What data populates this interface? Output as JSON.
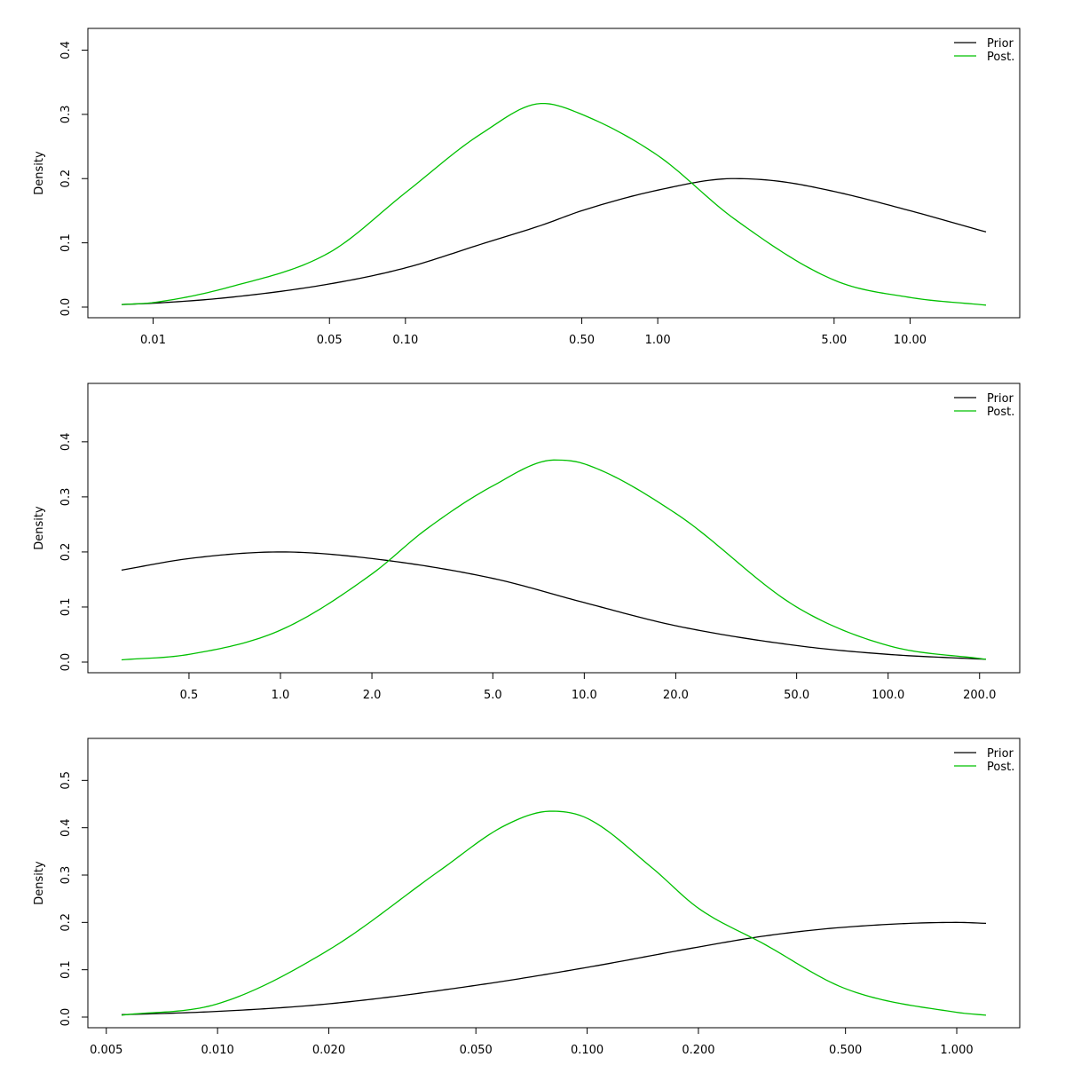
{
  "colors": {
    "prior": "#000000",
    "post": "#00c000"
  },
  "chart_data": [
    {
      "type": "line",
      "x_scale": "log",
      "xlim": [
        0.0075,
        20
      ],
      "ylim": [
        0,
        0.42
      ],
      "ylabel": "Density",
      "xticks": [
        0.01,
        0.05,
        0.1,
        0.5,
        1.0,
        5.0,
        10.0
      ],
      "xtick_labels": [
        "0.01",
        "0.05",
        "0.10",
        "0.50",
        "1.00",
        "5.00",
        "10.00"
      ],
      "yticks": [
        0.0,
        0.1,
        0.2,
        0.3,
        0.4
      ],
      "ytick_labels": [
        "0.0",
        "0.1",
        "0.2",
        "0.3",
        "0.4"
      ],
      "legend": {
        "position": "top-right",
        "entries": [
          "Prior",
          "Post."
        ]
      },
      "series": [
        {
          "name": "Prior",
          "color": "#000000",
          "x": [
            0.0075,
            0.01,
            0.02,
            0.05,
            0.1,
            0.2,
            0.35,
            0.5,
            1.0,
            2.0,
            3.0,
            5.0,
            10.0,
            20.0
          ],
          "y": [
            0.004,
            0.006,
            0.015,
            0.036,
            0.061,
            0.098,
            0.128,
            0.15,
            0.182,
            0.2,
            0.196,
            0.18,
            0.15,
            0.117
          ]
        },
        {
          "name": "Post.",
          "color": "#00c000",
          "x": [
            0.0075,
            0.01,
            0.02,
            0.05,
            0.1,
            0.2,
            0.35,
            0.5,
            1.0,
            2.0,
            5.0,
            10.0,
            20.0
          ],
          "y": [
            0.004,
            0.007,
            0.031,
            0.085,
            0.178,
            0.27,
            0.317,
            0.3,
            0.236,
            0.138,
            0.042,
            0.015,
            0.003
          ]
        }
      ]
    },
    {
      "type": "line",
      "x_scale": "log",
      "xlim": [
        0.3,
        210
      ],
      "ylim": [
        0,
        0.49
      ],
      "ylabel": "Density",
      "xticks": [
        0.5,
        1.0,
        2.0,
        5.0,
        10.0,
        20.0,
        50.0,
        100.0,
        200.0
      ],
      "xtick_labels": [
        "0.5",
        "1.0",
        "2.0",
        "5.0",
        "10.0",
        "20.0",
        "50.0",
        "100.0",
        "200.0"
      ],
      "yticks": [
        0.0,
        0.1,
        0.2,
        0.3,
        0.4
      ],
      "ytick_labels": [
        "0.0",
        "0.1",
        "0.2",
        "0.3",
        "0.4"
      ],
      "legend": {
        "position": "top-right",
        "entries": [
          "Prior",
          "Post."
        ]
      },
      "series": [
        {
          "name": "Prior",
          "color": "#000000",
          "x": [
            0.3,
            0.5,
            1.0,
            2.0,
            5.0,
            10.0,
            20.0,
            50.0,
            100.0,
            210.0
          ],
          "y": [
            0.167,
            0.188,
            0.2,
            0.188,
            0.152,
            0.108,
            0.066,
            0.03,
            0.014,
            0.005
          ]
        },
        {
          "name": "Post.",
          "color": "#00c000",
          "x": [
            0.3,
            0.5,
            1.0,
            2.0,
            3.0,
            5.0,
            8.0,
            10.0,
            20.0,
            50.0,
            100.0,
            210.0
          ],
          "y": [
            0.004,
            0.014,
            0.058,
            0.16,
            0.24,
            0.32,
            0.367,
            0.36,
            0.27,
            0.1,
            0.03,
            0.005
          ]
        }
      ]
    },
    {
      "type": "line",
      "x_scale": "log",
      "xlim": [
        0.0055,
        1.2
      ],
      "ylim": [
        0,
        0.57
      ],
      "ylabel": "Density",
      "xticks": [
        0.005,
        0.01,
        0.02,
        0.05,
        0.1,
        0.2,
        0.5,
        1.0
      ],
      "xtick_labels": [
        "0.005",
        "0.010",
        "0.020",
        "0.050",
        "0.100",
        "0.200",
        "0.500",
        "1.000"
      ],
      "yticks": [
        0.0,
        0.1,
        0.2,
        0.3,
        0.4,
        0.5
      ],
      "ytick_labels": [
        "0.0",
        "0.1",
        "0.2",
        "0.3",
        "0.4",
        "0.5"
      ],
      "legend": {
        "position": "top-right",
        "entries": [
          "Prior",
          "Post."
        ]
      },
      "series": [
        {
          "name": "Prior",
          "color": "#000000",
          "x": [
            0.0055,
            0.01,
            0.02,
            0.05,
            0.1,
            0.2,
            0.3,
            0.5,
            1.0,
            1.2
          ],
          "y": [
            0.005,
            0.012,
            0.028,
            0.067,
            0.105,
            0.148,
            0.171,
            0.19,
            0.2,
            0.198
          ]
        },
        {
          "name": "Post.",
          "color": "#00c000",
          "x": [
            0.0055,
            0.01,
            0.02,
            0.04,
            0.06,
            0.08,
            0.1,
            0.15,
            0.2,
            0.3,
            0.5,
            1.0,
            1.2
          ],
          "y": [
            0.004,
            0.028,
            0.142,
            0.31,
            0.405,
            0.435,
            0.42,
            0.315,
            0.23,
            0.155,
            0.06,
            0.01,
            0.004
          ]
        }
      ]
    }
  ]
}
